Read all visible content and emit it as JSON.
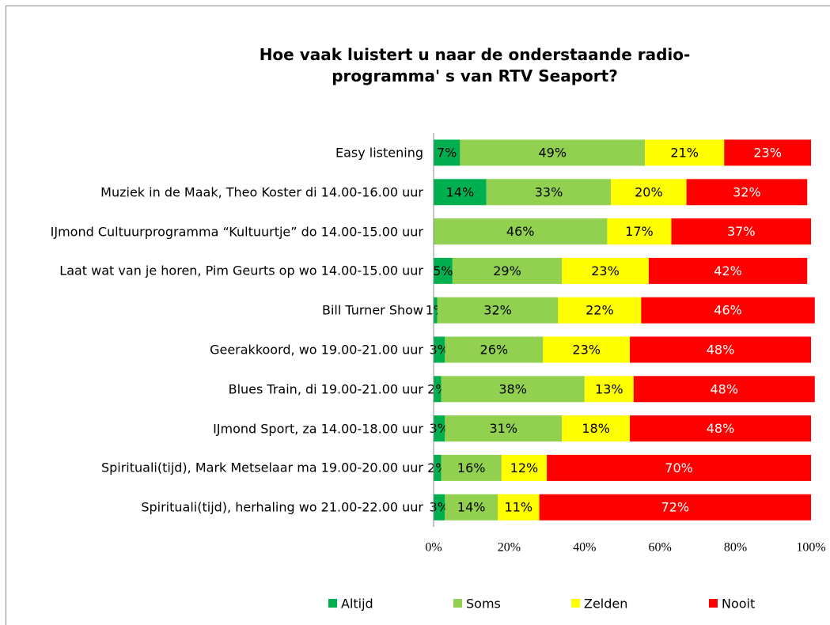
{
  "chart_data": {
    "type": "stacked_barh",
    "title": "Hoe vaak luistert u naar de onderstaande radio-programma' s van RTV Seaport?",
    "categories": [
      "Easy listening",
      "Muziek in de Maak, Theo Koster di 14.00-16.00 uur",
      "IJmond Cultuurprogramma “Kultuurtje” do 14.00-15.00 uur",
      "Laat wat van je horen, Pim Geurts op wo 14.00-15.00 uur",
      "Bill Turner Show",
      "Geerakkoord, wo 19.00-21.00 uur",
      "Blues Train, di 19.00-21.00 uur",
      "IJmond Sport, za 14.00-18.00 uur",
      "Spirituali(tijd), Mark Metselaar ma 19.00-20.00 uur",
      "Spirituali(tijd), herhaling wo 21.00-22.00 uur"
    ],
    "series": [
      {
        "name": "Altijd",
        "color": "#00b050",
        "label_color": "#000000",
        "values": [
          7,
          14,
          null,
          5,
          1,
          3,
          2,
          3,
          2,
          3
        ],
        "value_labels": [
          "7%",
          "14%",
          null,
          "5%",
          "1%",
          "3%",
          "2%",
          "3%",
          "2%",
          "3%"
        ]
      },
      {
        "name": "Soms",
        "color": "#92d050",
        "label_color": "#000000",
        "values": [
          49,
          33,
          46,
          29,
          32,
          26,
          38,
          31,
          16,
          14
        ],
        "value_labels": [
          "49%",
          "33%",
          "46%",
          "29%",
          "32%",
          "26%",
          "38%",
          "31%",
          "16%",
          "14%"
        ]
      },
      {
        "name": "Zelden",
        "color": "#ffff00",
        "label_color": "#000000",
        "values": [
          21,
          20,
          17,
          23,
          22,
          23,
          13,
          18,
          12,
          11
        ],
        "value_labels": [
          "21%",
          "20%",
          "17%",
          "23%",
          "22%",
          "23%",
          "13%",
          "18%",
          "12%",
          "11%"
        ]
      },
      {
        "name": "Nooit",
        "color": "#ff0000",
        "label_color": "#ffffff",
        "values": [
          23,
          32,
          37,
          42,
          46,
          48,
          48,
          48,
          70,
          72
        ],
        "value_labels": [
          "23%",
          "32%",
          "37%",
          "42%",
          "46%",
          "48%",
          "48%",
          "48%",
          "70%",
          "72%"
        ]
      }
    ],
    "xlim": [
      0,
      100
    ],
    "xticks": [
      {
        "value": 0,
        "label": "0%"
      },
      {
        "value": 20,
        "label": "20%"
      },
      {
        "value": 40,
        "label": "40%"
      },
      {
        "value": 60,
        "label": "60%"
      },
      {
        "value": 80,
        "label": "80%"
      },
      {
        "value": 100,
        "label": "100%"
      }
    ],
    "legend": "bottom"
  }
}
